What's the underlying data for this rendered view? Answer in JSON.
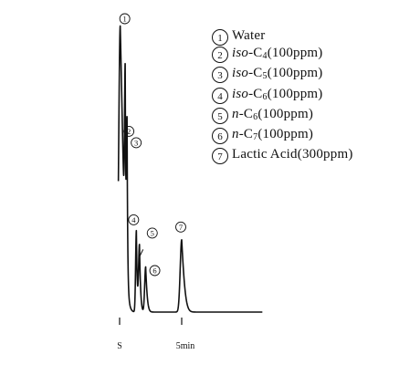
{
  "chart_data": {
    "type": "line",
    "xlabel": "",
    "ylabel": "",
    "x_tick_labels": [
      {
        "x": 0,
        "label": "S"
      },
      {
        "x": 5,
        "label": "5min"
      }
    ],
    "xlim": [
      -0.5,
      11.5
    ],
    "ylim": [
      0,
      100
    ],
    "grid": false,
    "legend_position": "top-right",
    "peaks": [
      {
        "id": "1",
        "label": "①",
        "name": "Water",
        "time": 0.05,
        "height": 95,
        "width": 0.12,
        "tail": 0.55
      },
      {
        "id": "2",
        "label": "②",
        "name": "iso-C4 (100ppm)",
        "time": 0.45,
        "height": 57,
        "width": 0.05,
        "tail": 0.05
      },
      {
        "id": "3",
        "label": "③",
        "name": "iso-C5 (100ppm)",
        "time": 0.6,
        "height": 52,
        "width": 0.05,
        "tail": 0.05
      },
      {
        "id": "4",
        "label": "④",
        "name": "iso-C6 (100ppm)",
        "time": 1.35,
        "height": 27,
        "width": 0.06,
        "tail": 0.08
      },
      {
        "id": "5",
        "label": "⑤",
        "name": "n-C6 (100ppm)",
        "time": 1.6,
        "height": 22,
        "width": 0.07,
        "tail": 0.1
      },
      {
        "id": "6",
        "label": "⑥",
        "name": "n-C7 (100ppm)",
        "time": 2.1,
        "height": 15,
        "width": 0.08,
        "tail": 0.14
      },
      {
        "id": "7",
        "label": "⑦",
        "name": "Lactic Acid (300ppm)",
        "time": 5.0,
        "height": 24,
        "width": 0.12,
        "tail": 0.3
      }
    ],
    "baseline_end": 11.5
  },
  "legend": [
    {
      "num": "1",
      "parts": [
        {
          "t": "Water"
        }
      ]
    },
    {
      "num": "2",
      "parts": [
        {
          "t": "iso",
          "i": true
        },
        {
          "t": "-C"
        },
        {
          "t": "4",
          "sub": true
        },
        {
          "t": "(100ppm)"
        }
      ]
    },
    {
      "num": "3",
      "parts": [
        {
          "t": "iso",
          "i": true
        },
        {
          "t": "-C"
        },
        {
          "t": "5",
          "sub": true
        },
        {
          "t": "(100ppm)"
        }
      ]
    },
    {
      "num": "4",
      "parts": [
        {
          "t": "iso",
          "i": true
        },
        {
          "t": "-C"
        },
        {
          "t": "6",
          "sub": true
        },
        {
          "t": "(100ppm)"
        }
      ]
    },
    {
      "num": "5",
      "parts": [
        {
          "t": "n",
          "i": true
        },
        {
          "t": "-C"
        },
        {
          "t": "6",
          "sub": true
        },
        {
          "t": "(100ppm)"
        }
      ]
    },
    {
      "num": "6",
      "parts": [
        {
          "t": "n",
          "i": true
        },
        {
          "t": "-C"
        },
        {
          "t": "7",
          "sub": true
        },
        {
          "t": "(100ppm)"
        }
      ]
    },
    {
      "num": "7",
      "parts": [
        {
          "t": "Lactic Acid"
        },
        {
          "t": "(300ppm)"
        }
      ]
    }
  ]
}
